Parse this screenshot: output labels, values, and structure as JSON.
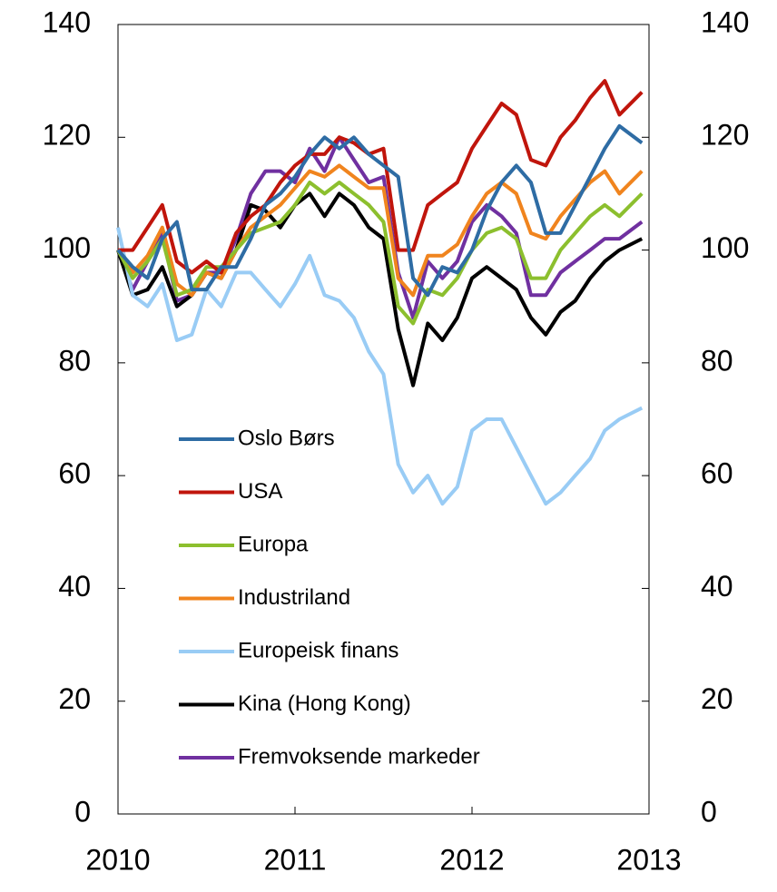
{
  "chart_data": {
    "type": "line",
    "x": [
      2010,
      2010.083,
      2010.167,
      2010.25,
      2010.333,
      2010.417,
      2010.5,
      2010.583,
      2010.667,
      2010.75,
      2010.833,
      2010.917,
      2011,
      2011.083,
      2011.167,
      2011.25,
      2011.333,
      2011.417,
      2011.5,
      2011.583,
      2011.667,
      2011.75,
      2011.833,
      2011.917,
      2012,
      2012.083,
      2012.167,
      2012.25,
      2012.333,
      2012.417,
      2012.5,
      2012.583,
      2012.667,
      2012.75,
      2012.833,
      2012.96
    ],
    "xlim": [
      2010,
      2013
    ],
    "xticks": [
      2010,
      2011,
      2012,
      2013
    ],
    "ylim": [
      0,
      140
    ],
    "yticks": [
      0,
      20,
      40,
      60,
      80,
      100,
      120,
      140
    ],
    "y2lim": [
      0,
      140
    ],
    "y2ticks": [
      0,
      20,
      40,
      60,
      80,
      100,
      120,
      140
    ],
    "series": [
      {
        "name": "Oslo Børs",
        "color": "#2e6ca4",
        "values": [
          100,
          97,
          95,
          102,
          105,
          93,
          93,
          97,
          97,
          102,
          108,
          110,
          113,
          117,
          120,
          118,
          120,
          117,
          115,
          113,
          95,
          92,
          97,
          96,
          100,
          107,
          112,
          115,
          112,
          103,
          103,
          108,
          113,
          118,
          122,
          119
        ]
      },
      {
        "name": "USA",
        "color": "#c0150c",
        "values": [
          100,
          100,
          104,
          108,
          98,
          96,
          98,
          96,
          103,
          106,
          108,
          112,
          115,
          117,
          117,
          120,
          119,
          117,
          118,
          100,
          100,
          108,
          110,
          112,
          118,
          122,
          126,
          124,
          116,
          115,
          120,
          123,
          127,
          130,
          124,
          128
        ]
      },
      {
        "name": "Europa",
        "color": "#8cbf2e",
        "values": [
          100,
          95,
          98,
          102,
          92,
          93,
          97,
          97,
          100,
          103,
          104,
          105,
          108,
          112,
          110,
          112,
          110,
          108,
          105,
          90,
          87,
          93,
          92,
          95,
          100,
          103,
          104,
          102,
          95,
          95,
          100,
          103,
          106,
          108,
          106,
          110
        ]
      },
      {
        "name": "Industriland",
        "color": "#f0841e",
        "values": [
          100,
          96,
          99,
          104,
          94,
          92,
          96,
          95,
          100,
          104,
          106,
          108,
          111,
          114,
          113,
          115,
          113,
          111,
          111,
          95,
          92,
          99,
          99,
          101,
          106,
          110,
          112,
          110,
          103,
          102,
          106,
          109,
          112,
          114,
          110,
          114
        ]
      },
      {
        "name": "Europeisk finans",
        "color": "#99ccf5",
        "values": [
          104,
          92,
          90,
          94,
          84,
          85,
          93,
          90,
          96,
          96,
          93,
          90,
          94,
          99,
          92,
          91,
          88,
          82,
          78,
          62,
          57,
          60,
          55,
          58,
          68,
          70,
          70,
          65,
          60,
          55,
          57,
          60,
          63,
          68,
          70,
          72
        ]
      },
      {
        "name": "Kina (Hong Kong)",
        "color": "#000000",
        "values": [
          100,
          92,
          93,
          97,
          90,
          92,
          96,
          95,
          100,
          108,
          107,
          104,
          108,
          110,
          106,
          110,
          108,
          104,
          102,
          86,
          76,
          87,
          84,
          88,
          95,
          97,
          95,
          93,
          88,
          85,
          89,
          91,
          95,
          98,
          100,
          102
        ]
      },
      {
        "name": "Fremvoksende markeder",
        "color": "#7030a0",
        "values": [
          100,
          93,
          98,
          103,
          91,
          92,
          96,
          96,
          102,
          110,
          114,
          114,
          112,
          118,
          114,
          120,
          116,
          112,
          113,
          96,
          88,
          98,
          95,
          98,
          105,
          108,
          106,
          103,
          92,
          92,
          96,
          98,
          100,
          102,
          102,
          105
        ]
      }
    ]
  }
}
